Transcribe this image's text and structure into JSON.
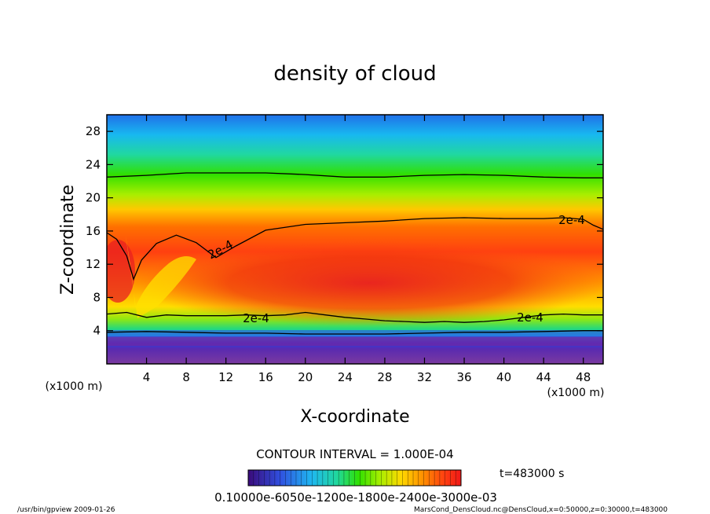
{
  "chart_data": {
    "type": "heatmap",
    "title": "density of cloud",
    "xlabel": "X-coordinate",
    "ylabel": "Z-coordinate",
    "x_unit": "(x1000 m)",
    "y_unit": "(x1000 m)",
    "xlim": [
      0,
      50
    ],
    "ylim": [
      0,
      30
    ],
    "x_ticks": [
      "4",
      "8",
      "12",
      "16",
      "20",
      "24",
      "28",
      "32",
      "36",
      "40",
      "44",
      "48"
    ],
    "y_ticks": [
      "4",
      "8",
      "12",
      "16",
      "20",
      "24",
      "28"
    ],
    "contour_interval_text": "CONTOUR INTERVAL = 1.000E-04",
    "contour_labels": [
      "2e-4",
      "2e-4",
      "2e-4",
      "2e-4"
    ],
    "colorbar_labels_text": "0.10000e-6050e-1200e-1800e-2400e-3000e-03",
    "time_text": "t=483000 s",
    "footer_left": "/usr/bin/gpview   2009-01-26",
    "footer_right": "MarsCond_DensCloud.nc@DensCloud,x=0:50000,z=0:30000,t=483000",
    "colormap": [
      "#3a0a7a",
      "#3050e0",
      "#1fb8f0",
      "#20d89a",
      "#30e000",
      "#a8ee00",
      "#ffd800",
      "#ff9000",
      "#ff4010",
      "#f01818"
    ],
    "contours": [
      {
        "name": "upper-isoline",
        "x": [
          0,
          4,
          8,
          12,
          16,
          20,
          24,
          28,
          32,
          36,
          40,
          44,
          48,
          50
        ],
        "z": [
          22.5,
          22.7,
          23.0,
          23.0,
          23.0,
          22.8,
          22.5,
          22.5,
          22.7,
          22.8,
          22.7,
          22.5,
          22.4,
          22.4
        ]
      },
      {
        "name": "2e-4-top",
        "x": [
          0,
          1,
          2,
          2.7,
          3.5,
          5,
          7,
          9,
          11,
          13,
          16,
          20,
          24,
          28,
          32,
          36,
          40,
          44,
          46,
          48,
          49,
          50
        ],
        "z": [
          15.8,
          15,
          13,
          10.2,
          12.5,
          14.5,
          15.5,
          14.6,
          12.8,
          14.2,
          16.1,
          16.8,
          17.0,
          17.2,
          17.5,
          17.6,
          17.5,
          17.5,
          17.6,
          17.4,
          16.7,
          16.2
        ]
      },
      {
        "name": "2e-4-bottom",
        "x": [
          0,
          2,
          4,
          6,
          8,
          10,
          12,
          14,
          16,
          18,
          20,
          22,
          24,
          26,
          28,
          30,
          32,
          34,
          36,
          38,
          40,
          42,
          44,
          46,
          48,
          50
        ],
        "z": [
          6.0,
          6.2,
          5.6,
          5.9,
          5.8,
          5.8,
          5.8,
          5.9,
          5.8,
          5.9,
          6.2,
          5.9,
          5.6,
          5.4,
          5.2,
          5.1,
          5.0,
          5.1,
          5.0,
          5.1,
          5.3,
          5.6,
          5.9,
          6.0,
          5.9,
          5.9
        ]
      },
      {
        "name": "base-isoline",
        "x": [
          0,
          4,
          8,
          12,
          16,
          20,
          24,
          28,
          32,
          36,
          40,
          44,
          48,
          50
        ],
        "z": [
          3.8,
          3.9,
          3.8,
          3.7,
          3.7,
          3.6,
          3.6,
          3.6,
          3.7,
          3.8,
          3.8,
          3.9,
          4.0,
          4.0
        ]
      }
    ]
  }
}
